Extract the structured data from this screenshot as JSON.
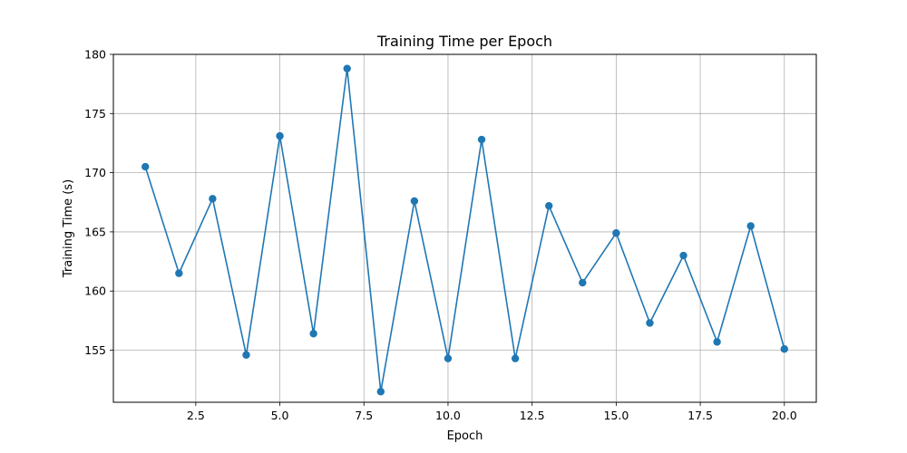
{
  "chart_data": {
    "type": "line",
    "title": "Training Time per Epoch",
    "xlabel": "Epoch",
    "ylabel": "Training Time (s)",
    "xlim": [
      0.05,
      20.95
    ],
    "ylim": [
      150.6,
      180.0
    ],
    "xticks": [
      2.5,
      5.0,
      7.5,
      10.0,
      12.5,
      15.0,
      17.5,
      20.0
    ],
    "xtick_labels": [
      "2.5",
      "5.0",
      "7.5",
      "10.0",
      "12.5",
      "15.0",
      "17.5",
      "20.0"
    ],
    "yticks": [
      155,
      160,
      165,
      170,
      175,
      180
    ],
    "ytick_labels": [
      "155",
      "160",
      "165",
      "170",
      "175",
      "180"
    ],
    "grid": true,
    "marker": "circle",
    "series": [
      {
        "color": "#1f77b4",
        "x": [
          1,
          2,
          3,
          4,
          5,
          6,
          7,
          8,
          9,
          10,
          11,
          12,
          13,
          14,
          15,
          16,
          17,
          18,
          19,
          20
        ],
        "y": [
          170.5,
          161.5,
          167.8,
          154.6,
          173.1,
          156.4,
          178.8,
          151.5,
          167.6,
          154.3,
          172.8,
          154.3,
          167.2,
          160.7,
          164.9,
          157.3,
          163.0,
          155.7,
          165.5,
          155.1
        ]
      }
    ]
  }
}
